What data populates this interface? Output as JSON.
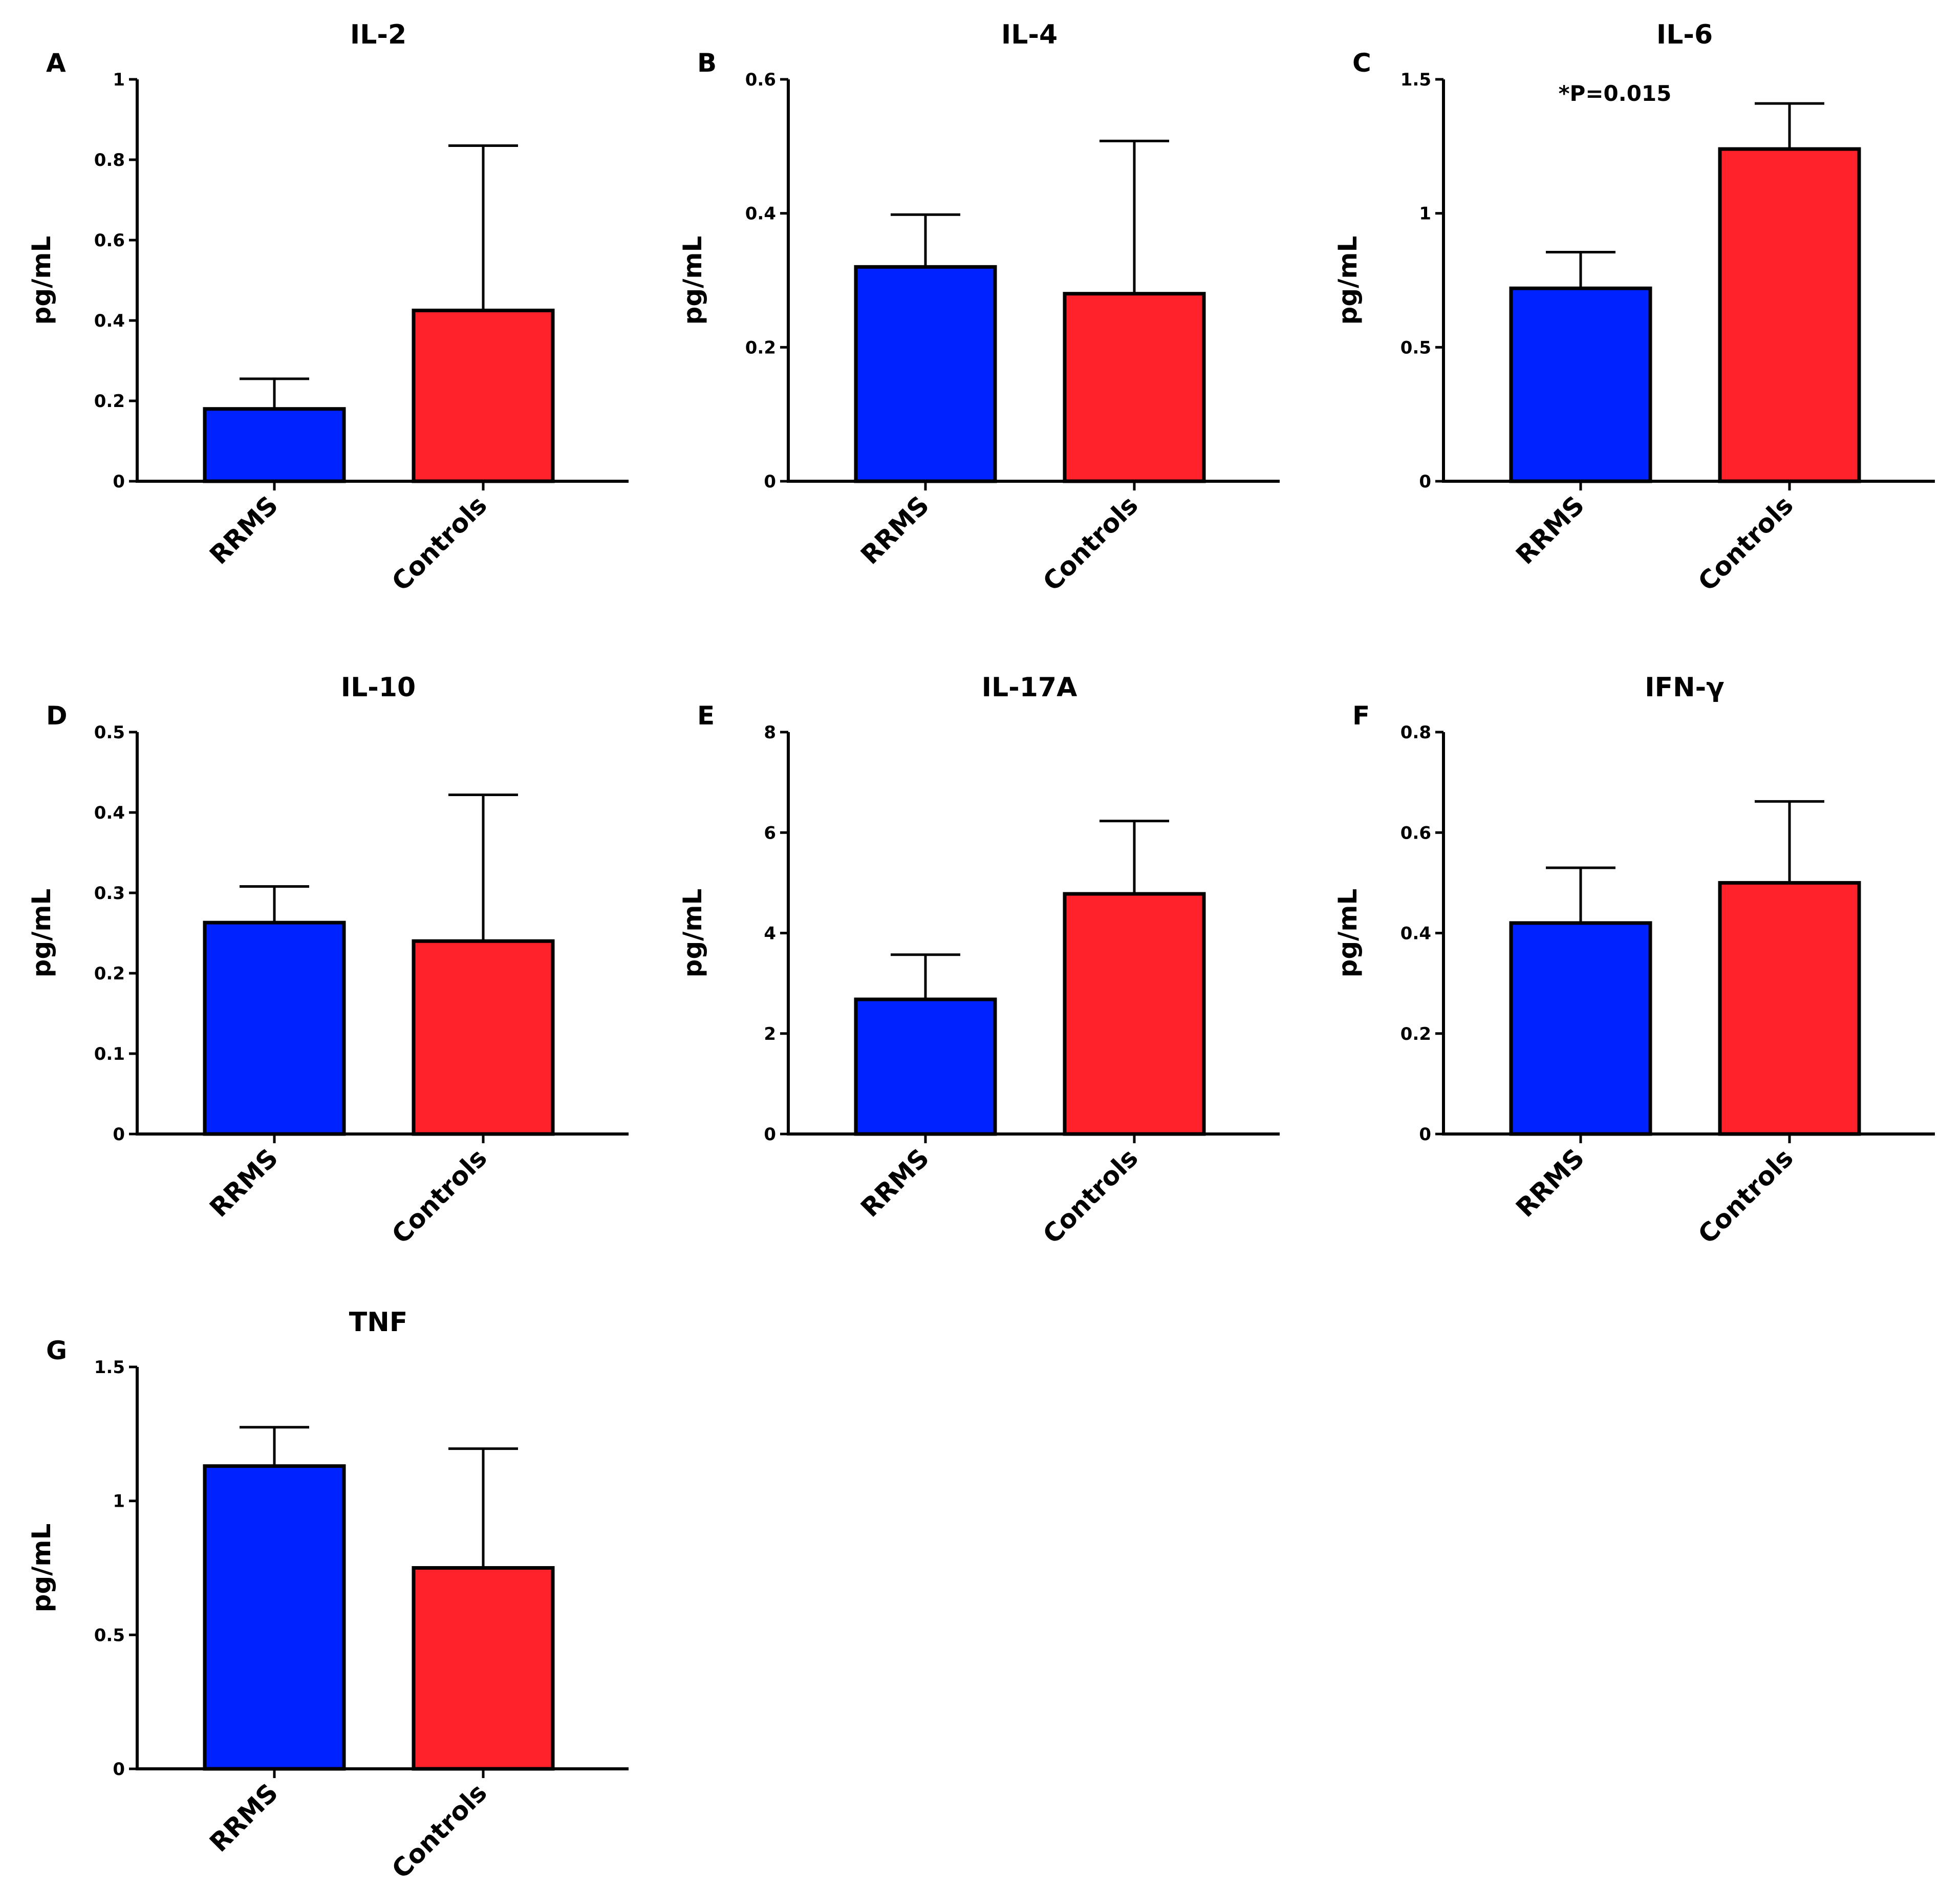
{
  "figure": {
    "background": "#ffffff"
  },
  "colors": {
    "RRMS": "#0022ff",
    "Controls": "#ff222a",
    "stroke": "#000000"
  },
  "chart_data": [
    {
      "type": "bar",
      "panel": "A",
      "title": "IL-2",
      "ylabel": "pg/mL",
      "categories": [
        "RRMS",
        "Controls"
      ],
      "values": [
        0.18,
        0.425
      ],
      "error_upper": [
        0.255,
        0.835
      ],
      "ylim": [
        0,
        1
      ],
      "yticks": [
        "0",
        "0.2",
        "0.4",
        "0.6",
        "0.8",
        "1"
      ],
      "annotation": ""
    },
    {
      "type": "bar",
      "panel": "B",
      "title": "IL-4",
      "ylabel": "pg/mL",
      "categories": [
        "RRMS",
        "Controls"
      ],
      "values": [
        0.32,
        0.28
      ],
      "error_upper": [
        0.398,
        0.508
      ],
      "ylim": [
        0,
        0.6
      ],
      "yticks": [
        "0",
        "0.2",
        "0.4",
        "0.6"
      ],
      "annotation": ""
    },
    {
      "type": "bar",
      "panel": "C",
      "title": "IL-6",
      "ylabel": "pg/mL",
      "categories": [
        "RRMS",
        "Controls"
      ],
      "values": [
        0.72,
        1.24
      ],
      "error_upper": [
        0.855,
        1.41
      ],
      "ylim": [
        0,
        1.5
      ],
      "yticks": [
        "0",
        "0.5",
        "1",
        "1.5"
      ],
      "annotation": "*P=0.015"
    },
    {
      "type": "bar",
      "panel": "D",
      "title": "IL-10",
      "ylabel": "pg/mL",
      "categories": [
        "RRMS",
        "Controls"
      ],
      "values": [
        0.263,
        0.24
      ],
      "error_upper": [
        0.308,
        0.422
      ],
      "ylim": [
        0,
        0.5
      ],
      "yticks": [
        "0",
        "0.1",
        "0.2",
        "0.3",
        "0.4",
        "0.5"
      ],
      "annotation": ""
    },
    {
      "type": "bar",
      "panel": "E",
      "title": "IL-17A",
      "ylabel": "pg/mL",
      "categories": [
        "RRMS",
        "Controls"
      ],
      "values": [
        2.68,
        4.78
      ],
      "error_upper": [
        3.57,
        6.23
      ],
      "ylim": [
        0,
        8
      ],
      "yticks": [
        "0",
        "2",
        "4",
        "6",
        "8"
      ],
      "annotation": ""
    },
    {
      "type": "bar",
      "panel": "F",
      "title": "IFN-γ",
      "ylabel": "pg/mL",
      "categories": [
        "RRMS",
        "Controls"
      ],
      "values": [
        0.42,
        0.5
      ],
      "error_upper": [
        0.53,
        0.662
      ],
      "ylim": [
        0,
        0.8
      ],
      "yticks": [
        "0",
        "0.2",
        "0.4",
        "0.6",
        "0.8"
      ],
      "annotation": ""
    },
    {
      "type": "bar",
      "panel": "G",
      "title": "TNF",
      "ylabel": "pg/mL",
      "categories": [
        "RRMS",
        "Controls"
      ],
      "values": [
        1.13,
        0.75
      ],
      "error_upper": [
        1.275,
        1.195
      ],
      "ylim": [
        0,
        1.5
      ],
      "yticks": [
        "0",
        "0.5",
        "1",
        "1.5"
      ],
      "annotation": ""
    }
  ]
}
